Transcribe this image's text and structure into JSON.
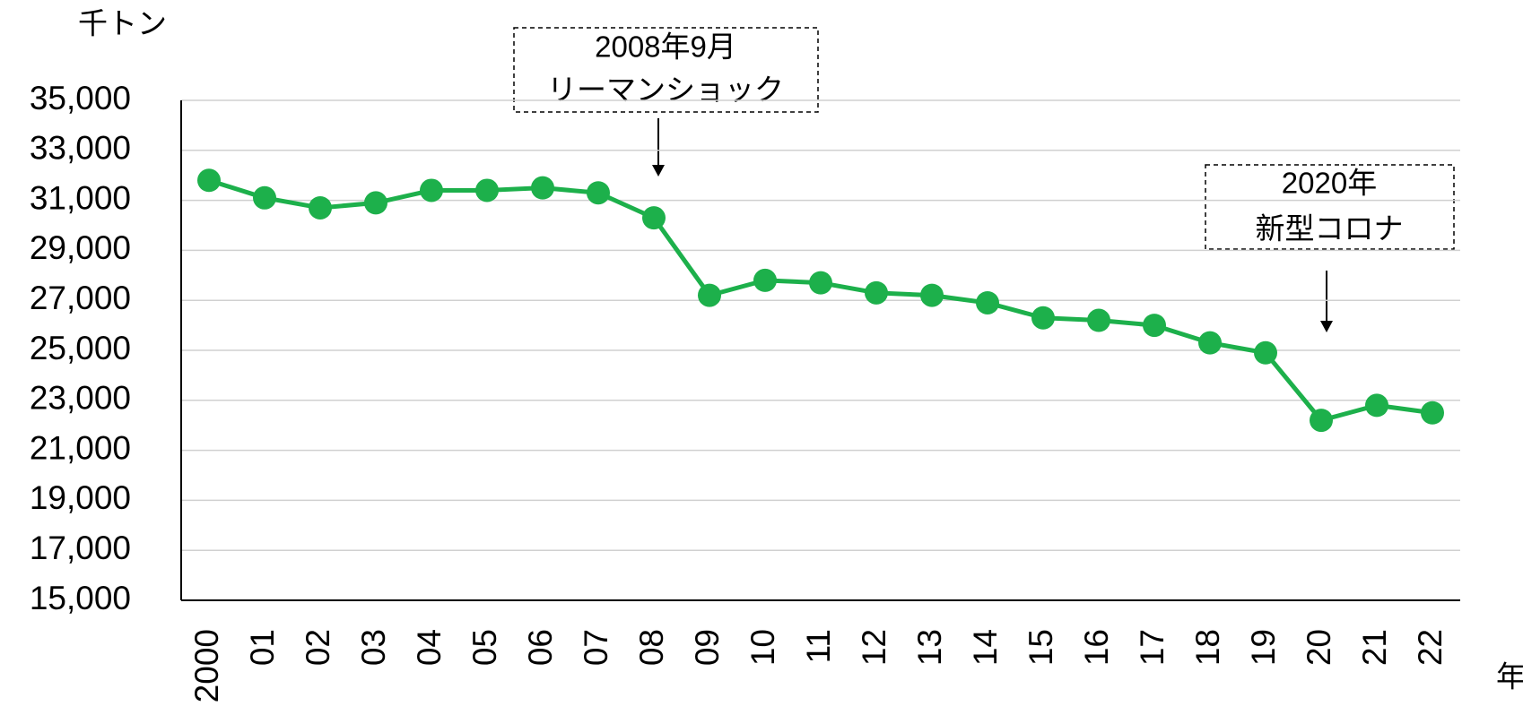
{
  "chart_data": {
    "type": "line",
    "y_unit_label": "千トン",
    "x_unit_label": "年",
    "categories": [
      "2000",
      "01",
      "02",
      "03",
      "04",
      "05",
      "06",
      "07",
      "08",
      "09",
      "10",
      "11",
      "12",
      "13",
      "14",
      "15",
      "16",
      "17",
      "18",
      "19",
      "20",
      "21",
      "22"
    ],
    "series": [
      {
        "color": "#1db04b",
        "values": [
          31800,
          31100,
          30700,
          30900,
          31400,
          31400,
          31500,
          31300,
          30300,
          27200,
          27800,
          27700,
          27300,
          27200,
          26900,
          26300,
          26200,
          26000,
          25300,
          24900,
          22200,
          22800,
          22500
        ]
      }
    ],
    "ylim": [
      15000,
      35000
    ],
    "yticks": [
      {
        "value": 15000,
        "label": "15,000"
      },
      {
        "value": 17000,
        "label": "17,000"
      },
      {
        "value": 19000,
        "label": "19,000"
      },
      {
        "value": 21000,
        "label": "21,000"
      },
      {
        "value": 23000,
        "label": "23,000"
      },
      {
        "value": 25000,
        "label": "25,000"
      },
      {
        "value": 27000,
        "label": "27,000"
      },
      {
        "value": 29000,
        "label": "29,000"
      },
      {
        "value": 31000,
        "label": "31,000"
      },
      {
        "value": 33000,
        "label": "33,000"
      },
      {
        "value": 35000,
        "label": "35,000"
      }
    ],
    "grid": true,
    "annotations": [
      {
        "lines": [
          "2008年9月",
          "リーマンショック"
        ]
      },
      {
        "lines": [
          "2020年",
          "新型コロナ"
        ]
      }
    ]
  }
}
